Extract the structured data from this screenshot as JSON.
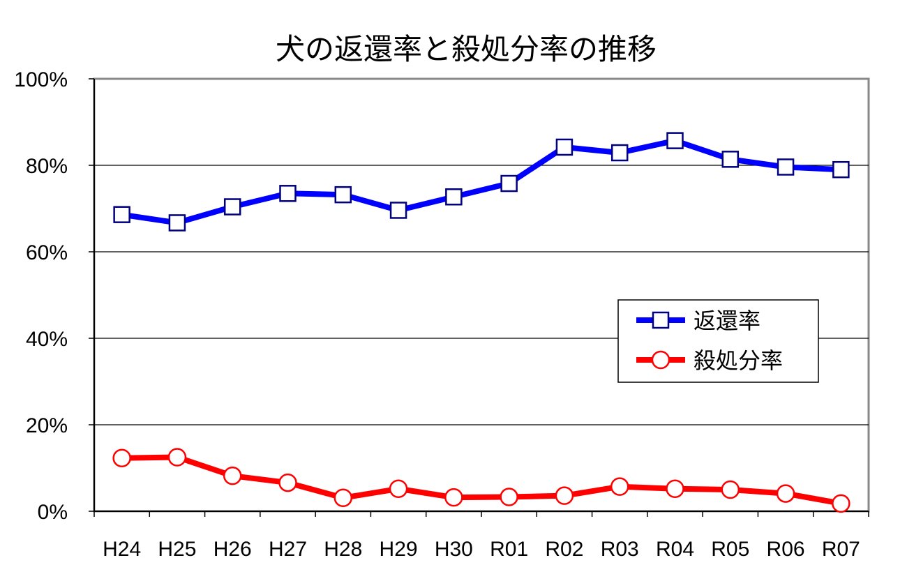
{
  "chart_data": {
    "type": "line",
    "title": "犬の返還率と殺処分率の推移",
    "categories": [
      "H24",
      "H25",
      "H26",
      "H27",
      "H28",
      "H29",
      "H30",
      "R01",
      "R02",
      "R03",
      "R04",
      "R05",
      "R06",
      "R07"
    ],
    "y_tick_labels": [
      "0%",
      "20%",
      "40%",
      "60%",
      "80%",
      "100%"
    ],
    "ylim": [
      0,
      100
    ],
    "y_unit": "%",
    "grid": true,
    "legend_position": "right",
    "series": [
      {
        "name": "返還率",
        "color": "#0000ff",
        "marker": "square",
        "values": [
          68.6,
          66.7,
          70.4,
          73.5,
          73.2,
          69.6,
          72.7,
          75.8,
          84.2,
          82.9,
          85.7,
          81.4,
          79.6,
          79.0
        ]
      },
      {
        "name": "殺処分率",
        "color": "#ff0000",
        "marker": "circle",
        "values": [
          12.3,
          12.5,
          8.2,
          6.6,
          3.1,
          5.2,
          3.2,
          3.3,
          3.6,
          5.7,
          5.2,
          5.0,
          4.1,
          1.8
        ]
      }
    ]
  }
}
